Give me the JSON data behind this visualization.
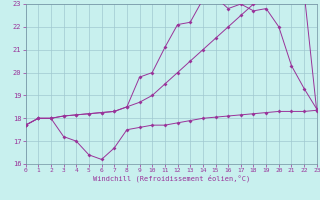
{
  "title": "",
  "xlabel": "Windchill (Refroidissement éolien,°C)",
  "bg_color": "#c8f0ee",
  "grid_color": "#a0c8d0",
  "line_color": "#993399",
  "spine_color": "#7090a0",
  "xmin": 0,
  "xmax": 23,
  "ymin": 16,
  "ymax": 23,
  "yticks": [
    16,
    17,
    18,
    19,
    20,
    21,
    22,
    23
  ],
  "xticks": [
    0,
    1,
    2,
    3,
    4,
    5,
    6,
    7,
    8,
    9,
    10,
    11,
    12,
    13,
    14,
    15,
    16,
    17,
    18,
    19,
    20,
    21,
    22,
    23
  ],
  "line1_x": [
    0,
    1,
    2,
    3,
    4,
    5,
    6,
    7,
    8,
    9,
    10,
    11,
    12,
    13,
    14,
    15,
    16,
    17,
    18,
    19,
    20,
    21,
    22,
    23
  ],
  "line1_y": [
    17.7,
    18.0,
    18.0,
    17.2,
    17.0,
    16.4,
    16.2,
    16.7,
    17.5,
    17.6,
    17.7,
    17.7,
    17.8,
    17.9,
    18.0,
    18.05,
    18.1,
    18.15,
    18.2,
    18.25,
    18.3,
    18.3,
    18.3,
    18.35
  ],
  "line2_x": [
    0,
    1,
    2,
    3,
    4,
    5,
    6,
    7,
    8,
    9,
    10,
    11,
    12,
    13,
    14,
    15,
    16,
    17,
    18,
    19,
    20,
    21,
    22,
    23
  ],
  "line2_y": [
    17.7,
    18.0,
    18.0,
    18.1,
    18.15,
    18.2,
    18.25,
    18.3,
    18.5,
    18.7,
    19.0,
    19.5,
    20.0,
    20.5,
    21.0,
    21.5,
    22.0,
    22.5,
    23.0,
    23.3,
    23.5,
    23.5,
    23.5,
    18.3
  ],
  "line3_x": [
    0,
    1,
    2,
    3,
    4,
    5,
    6,
    7,
    8,
    9,
    10,
    11,
    12,
    13,
    14,
    15,
    16,
    17,
    18,
    19,
    20,
    21,
    22,
    23
  ],
  "line3_y": [
    17.7,
    18.0,
    18.0,
    18.1,
    18.15,
    18.2,
    18.25,
    18.3,
    18.5,
    19.8,
    20.0,
    21.1,
    22.1,
    22.2,
    23.2,
    23.3,
    22.8,
    23.0,
    22.7,
    22.8,
    22.0,
    20.3,
    19.3,
    18.4
  ]
}
